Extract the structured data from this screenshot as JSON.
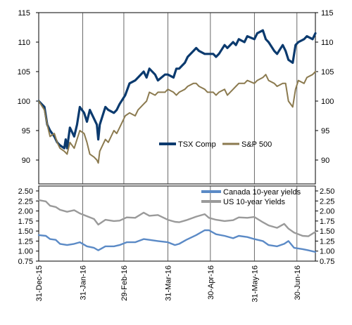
{
  "chart_data": [
    {
      "type": "line",
      "title": "",
      "xlabel": "",
      "ylabel": "",
      "ylim": [
        85,
        115
      ],
      "yticks": [
        90,
        95,
        100,
        105,
        110,
        115
      ],
      "ytick_labels": [
        "90",
        "95",
        "100",
        "105",
        "110",
        "115"
      ],
      "grid": "vertical lines at each month label",
      "legend_position": "lower-right",
      "series": [
        {
          "name": "TSX Comp",
          "color": "#0b3a6e",
          "points": [
            [
              "2015-12-31",
              100.0
            ],
            [
              "2016-01-04",
              99.0
            ],
            [
              "2016-01-06",
              96.0
            ],
            [
              "2016-01-08",
              95.0
            ],
            [
              "2016-01-11",
              94.0
            ],
            [
              "2016-01-13",
              93.0
            ],
            [
              "2016-01-15",
              92.5
            ],
            [
              "2016-01-18",
              92.0
            ],
            [
              "2016-01-19",
              93.5
            ],
            [
              "2016-01-20",
              92.0
            ],
            [
              "2016-01-22",
              95.5
            ],
            [
              "2016-01-25",
              94.0
            ],
            [
              "2016-01-27",
              96.0
            ],
            [
              "2016-01-29",
              99.0
            ],
            [
              "2016-02-01",
              98.0
            ],
            [
              "2016-02-03",
              96.5
            ],
            [
              "2016-02-05",
              98.5
            ],
            [
              "2016-02-08",
              97.0
            ],
            [
              "2016-02-10",
              96.0
            ],
            [
              "2016-02-11",
              93.5
            ],
            [
              "2016-02-12",
              96.0
            ],
            [
              "2016-02-16",
              99.0
            ],
            [
              "2016-02-18",
              98.5
            ],
            [
              "2016-02-22",
              98.0
            ],
            [
              "2016-02-24",
              98.5
            ],
            [
              "2016-02-26",
              99.5
            ],
            [
              "2016-03-01",
              101.0
            ],
            [
              "2016-03-04",
              103.0
            ],
            [
              "2016-03-08",
              103.5
            ],
            [
              "2016-03-10",
              104.0
            ],
            [
              "2016-03-14",
              105.0
            ],
            [
              "2016-03-16",
              104.0
            ],
            [
              "2016-03-18",
              105.5
            ],
            [
              "2016-03-22",
              104.5
            ],
            [
              "2016-03-24",
              103.5
            ],
            [
              "2016-03-29",
              104.5
            ],
            [
              "2016-03-31",
              104.5
            ],
            [
              "2016-04-04",
              104.0
            ],
            [
              "2016-04-06",
              105.5
            ],
            [
              "2016-04-08",
              105.5
            ],
            [
              "2016-04-12",
              106.5
            ],
            [
              "2016-04-14",
              107.5
            ],
            [
              "2016-04-18",
              108.5
            ],
            [
              "2016-04-20",
              109.0
            ],
            [
              "2016-04-22",
              108.5
            ],
            [
              "2016-04-26",
              108.0
            ],
            [
              "2016-04-28",
              108.0
            ],
            [
              "2016-05-02",
              108.0
            ],
            [
              "2016-05-04",
              107.5
            ],
            [
              "2016-05-06",
              108.0
            ],
            [
              "2016-05-10",
              109.5
            ],
            [
              "2016-05-12",
              109.0
            ],
            [
              "2016-05-16",
              110.0
            ],
            [
              "2016-05-18",
              109.5
            ],
            [
              "2016-05-20",
              110.5
            ],
            [
              "2016-05-24",
              110.0
            ],
            [
              "2016-05-26",
              111.0
            ],
            [
              "2016-05-31",
              110.5
            ],
            [
              "2016-06-02",
              111.5
            ],
            [
              "2016-06-06",
              112.0
            ],
            [
              "2016-06-08",
              110.5
            ],
            [
              "2016-06-10",
              110.0
            ],
            [
              "2016-06-14",
              108.5
            ],
            [
              "2016-06-16",
              108.0
            ],
            [
              "2016-06-20",
              109.5
            ],
            [
              "2016-06-22",
              108.5
            ],
            [
              "2016-06-24",
              107.0
            ],
            [
              "2016-06-27",
              106.5
            ],
            [
              "2016-06-29",
              109.5
            ],
            [
              "2016-07-01",
              110.0
            ],
            [
              "2016-07-05",
              110.5
            ],
            [
              "2016-07-07",
              111.0
            ],
            [
              "2016-07-11",
              110.5
            ],
            [
              "2016-07-13",
              111.5
            ]
          ]
        },
        {
          "name": "S&P 500",
          "color": "#8b7a4f",
          "points": [
            [
              "2015-12-31",
              100.0
            ],
            [
              "2016-01-04",
              98.5
            ],
            [
              "2016-01-06",
              96.0
            ],
            [
              "2016-01-08",
              94.0
            ],
            [
              "2016-01-11",
              94.5
            ],
            [
              "2016-01-13",
              93.0
            ],
            [
              "2016-01-15",
              92.0
            ],
            [
              "2016-01-18",
              91.5
            ],
            [
              "2016-01-20",
              91.0
            ],
            [
              "2016-01-22",
              93.0
            ],
            [
              "2016-01-25",
              92.0
            ],
            [
              "2016-01-27",
              93.5
            ],
            [
              "2016-01-29",
              95.0
            ],
            [
              "2016-02-01",
              94.5
            ],
            [
              "2016-02-03",
              93.0
            ],
            [
              "2016-02-05",
              91.0
            ],
            [
              "2016-02-08",
              90.5
            ],
            [
              "2016-02-10",
              90.0
            ],
            [
              "2016-02-11",
              89.5
            ],
            [
              "2016-02-12",
              91.5
            ],
            [
              "2016-02-16",
              93.5
            ],
            [
              "2016-02-18",
              93.0
            ],
            [
              "2016-02-22",
              95.0
            ],
            [
              "2016-02-24",
              94.5
            ],
            [
              "2016-02-26",
              95.5
            ],
            [
              "2016-03-01",
              97.5
            ],
            [
              "2016-03-04",
              98.0
            ],
            [
              "2016-03-08",
              97.5
            ],
            [
              "2016-03-10",
              98.5
            ],
            [
              "2016-03-14",
              99.5
            ],
            [
              "2016-03-16",
              100.0
            ],
            [
              "2016-03-18",
              101.5
            ],
            [
              "2016-03-22",
              101.0
            ],
            [
              "2016-03-24",
              101.5
            ],
            [
              "2016-03-29",
              101.5
            ],
            [
              "2016-03-31",
              102.0
            ],
            [
              "2016-04-04",
              101.5
            ],
            [
              "2016-04-06",
              101.0
            ],
            [
              "2016-04-08",
              101.5
            ],
            [
              "2016-04-12",
              102.0
            ],
            [
              "2016-04-14",
              102.5
            ],
            [
              "2016-04-18",
              103.0
            ],
            [
              "2016-04-20",
              103.0
            ],
            [
              "2016-04-22",
              102.5
            ],
            [
              "2016-04-26",
              102.0
            ],
            [
              "2016-04-28",
              101.5
            ],
            [
              "2016-05-02",
              101.5
            ],
            [
              "2016-05-04",
              101.0
            ],
            [
              "2016-05-06",
              101.5
            ],
            [
              "2016-05-10",
              102.0
            ],
            [
              "2016-05-12",
              101.0
            ],
            [
              "2016-05-16",
              102.0
            ],
            [
              "2016-05-18",
              102.5
            ],
            [
              "2016-05-20",
              103.0
            ],
            [
              "2016-05-24",
              103.0
            ],
            [
              "2016-05-26",
              103.5
            ],
            [
              "2016-05-31",
              103.0
            ],
            [
              "2016-06-02",
              103.5
            ],
            [
              "2016-06-06",
              104.0
            ],
            [
              "2016-06-08",
              104.5
            ],
            [
              "2016-06-10",
              103.5
            ],
            [
              "2016-06-14",
              103.0
            ],
            [
              "2016-06-16",
              102.5
            ],
            [
              "2016-06-20",
              103.0
            ],
            [
              "2016-06-22",
              103.0
            ],
            [
              "2016-06-24",
              100.0
            ],
            [
              "2016-06-27",
              99.0
            ],
            [
              "2016-06-29",
              102.0
            ],
            [
              "2016-07-01",
              103.5
            ],
            [
              "2016-07-05",
              103.0
            ],
            [
              "2016-07-07",
              104.0
            ],
            [
              "2016-07-11",
              104.5
            ],
            [
              "2016-07-13",
              105.0
            ]
          ]
        }
      ]
    },
    {
      "type": "line",
      "title": "",
      "xlabel": "",
      "ylabel": "",
      "ylim": [
        0.75,
        2.5
      ],
      "yticks": [
        0.75,
        1.0,
        1.25,
        1.5,
        1.75,
        2.0,
        2.25,
        2.5
      ],
      "ytick_labels": [
        "0.75",
        "1.00",
        "1.25",
        "1.50",
        "1.75",
        "2.00",
        "2.25",
        "2.50"
      ],
      "grid": "vertical lines at each month label",
      "legend_position": "top-right",
      "x_tick_labels": [
        "31-Dec-15",
        "31-Jan-16",
        "29-Feb-16",
        "31-Mar-16",
        "30-Apr-16",
        "31-May-16",
        "30-Jun-16"
      ],
      "x_tick_dates": [
        "2015-12-31",
        "2016-01-31",
        "2016-02-29",
        "2016-03-31",
        "2016-04-30",
        "2016-05-31",
        "2016-06-30"
      ],
      "series": [
        {
          "name": "Canada 10-year yields",
          "color": "#5b8ac6",
          "points": [
            [
              "2015-12-31",
              1.4
            ],
            [
              "2016-01-05",
              1.38
            ],
            [
              "2016-01-08",
              1.3
            ],
            [
              "2016-01-12",
              1.28
            ],
            [
              "2016-01-15",
              1.18
            ],
            [
              "2016-01-20",
              1.15
            ],
            [
              "2016-01-25",
              1.18
            ],
            [
              "2016-01-29",
              1.22
            ],
            [
              "2016-02-03",
              1.12
            ],
            [
              "2016-02-08",
              1.08
            ],
            [
              "2016-02-11",
              1.02
            ],
            [
              "2016-02-16",
              1.12
            ],
            [
              "2016-02-22",
              1.12
            ],
            [
              "2016-02-26",
              1.15
            ],
            [
              "2016-03-02",
              1.22
            ],
            [
              "2016-03-08",
              1.22
            ],
            [
              "2016-03-14",
              1.3
            ],
            [
              "2016-03-18",
              1.28
            ],
            [
              "2016-03-24",
              1.25
            ],
            [
              "2016-03-31",
              1.22
            ],
            [
              "2016-04-05",
              1.15
            ],
            [
              "2016-04-08",
              1.18
            ],
            [
              "2016-04-13",
              1.28
            ],
            [
              "2016-04-20",
              1.4
            ],
            [
              "2016-04-26",
              1.52
            ],
            [
              "2016-04-29",
              1.52
            ],
            [
              "2016-05-04",
              1.42
            ],
            [
              "2016-05-10",
              1.38
            ],
            [
              "2016-05-16",
              1.32
            ],
            [
              "2016-05-20",
              1.38
            ],
            [
              "2016-05-26",
              1.35
            ],
            [
              "2016-05-31",
              1.3
            ],
            [
              "2016-06-06",
              1.25
            ],
            [
              "2016-06-10",
              1.15
            ],
            [
              "2016-06-16",
              1.12
            ],
            [
              "2016-06-21",
              1.18
            ],
            [
              "2016-06-24",
              1.25
            ],
            [
              "2016-06-28",
              1.08
            ],
            [
              "2016-07-04",
              1.05
            ],
            [
              "2016-07-08",
              1.02
            ],
            [
              "2016-07-13",
              0.98
            ]
          ]
        },
        {
          "name": "US 10-year Yields",
          "color": "#9a9a9a",
          "points": [
            [
              "2015-12-31",
              2.27
            ],
            [
              "2016-01-05",
              2.24
            ],
            [
              "2016-01-08",
              2.13
            ],
            [
              "2016-01-12",
              2.1
            ],
            [
              "2016-01-15",
              2.03
            ],
            [
              "2016-01-20",
              1.98
            ],
            [
              "2016-01-25",
              2.02
            ],
            [
              "2016-01-29",
              1.94
            ],
            [
              "2016-02-03",
              1.87
            ],
            [
              "2016-02-08",
              1.8
            ],
            [
              "2016-02-11",
              1.66
            ],
            [
              "2016-02-16",
              1.78
            ],
            [
              "2016-02-22",
              1.75
            ],
            [
              "2016-02-26",
              1.76
            ],
            [
              "2016-03-02",
              1.84
            ],
            [
              "2016-03-08",
              1.83
            ],
            [
              "2016-03-14",
              1.96
            ],
            [
              "2016-03-18",
              1.88
            ],
            [
              "2016-03-24",
              1.9
            ],
            [
              "2016-03-31",
              1.78
            ],
            [
              "2016-04-05",
              1.73
            ],
            [
              "2016-04-08",
              1.72
            ],
            [
              "2016-04-13",
              1.77
            ],
            [
              "2016-04-20",
              1.86
            ],
            [
              "2016-04-26",
              1.92
            ],
            [
              "2016-04-29",
              1.83
            ],
            [
              "2016-05-04",
              1.78
            ],
            [
              "2016-05-10",
              1.75
            ],
            [
              "2016-05-16",
              1.77
            ],
            [
              "2016-05-20",
              1.84
            ],
            [
              "2016-05-26",
              1.83
            ],
            [
              "2016-05-31",
              1.85
            ],
            [
              "2016-06-06",
              1.72
            ],
            [
              "2016-06-10",
              1.64
            ],
            [
              "2016-06-16",
              1.58
            ],
            [
              "2016-06-21",
              1.68
            ],
            [
              "2016-06-24",
              1.56
            ],
            [
              "2016-06-28",
              1.46
            ],
            [
              "2016-07-04",
              1.38
            ],
            [
              "2016-07-08",
              1.37
            ],
            [
              "2016-07-13",
              1.48
            ]
          ]
        }
      ]
    }
  ]
}
